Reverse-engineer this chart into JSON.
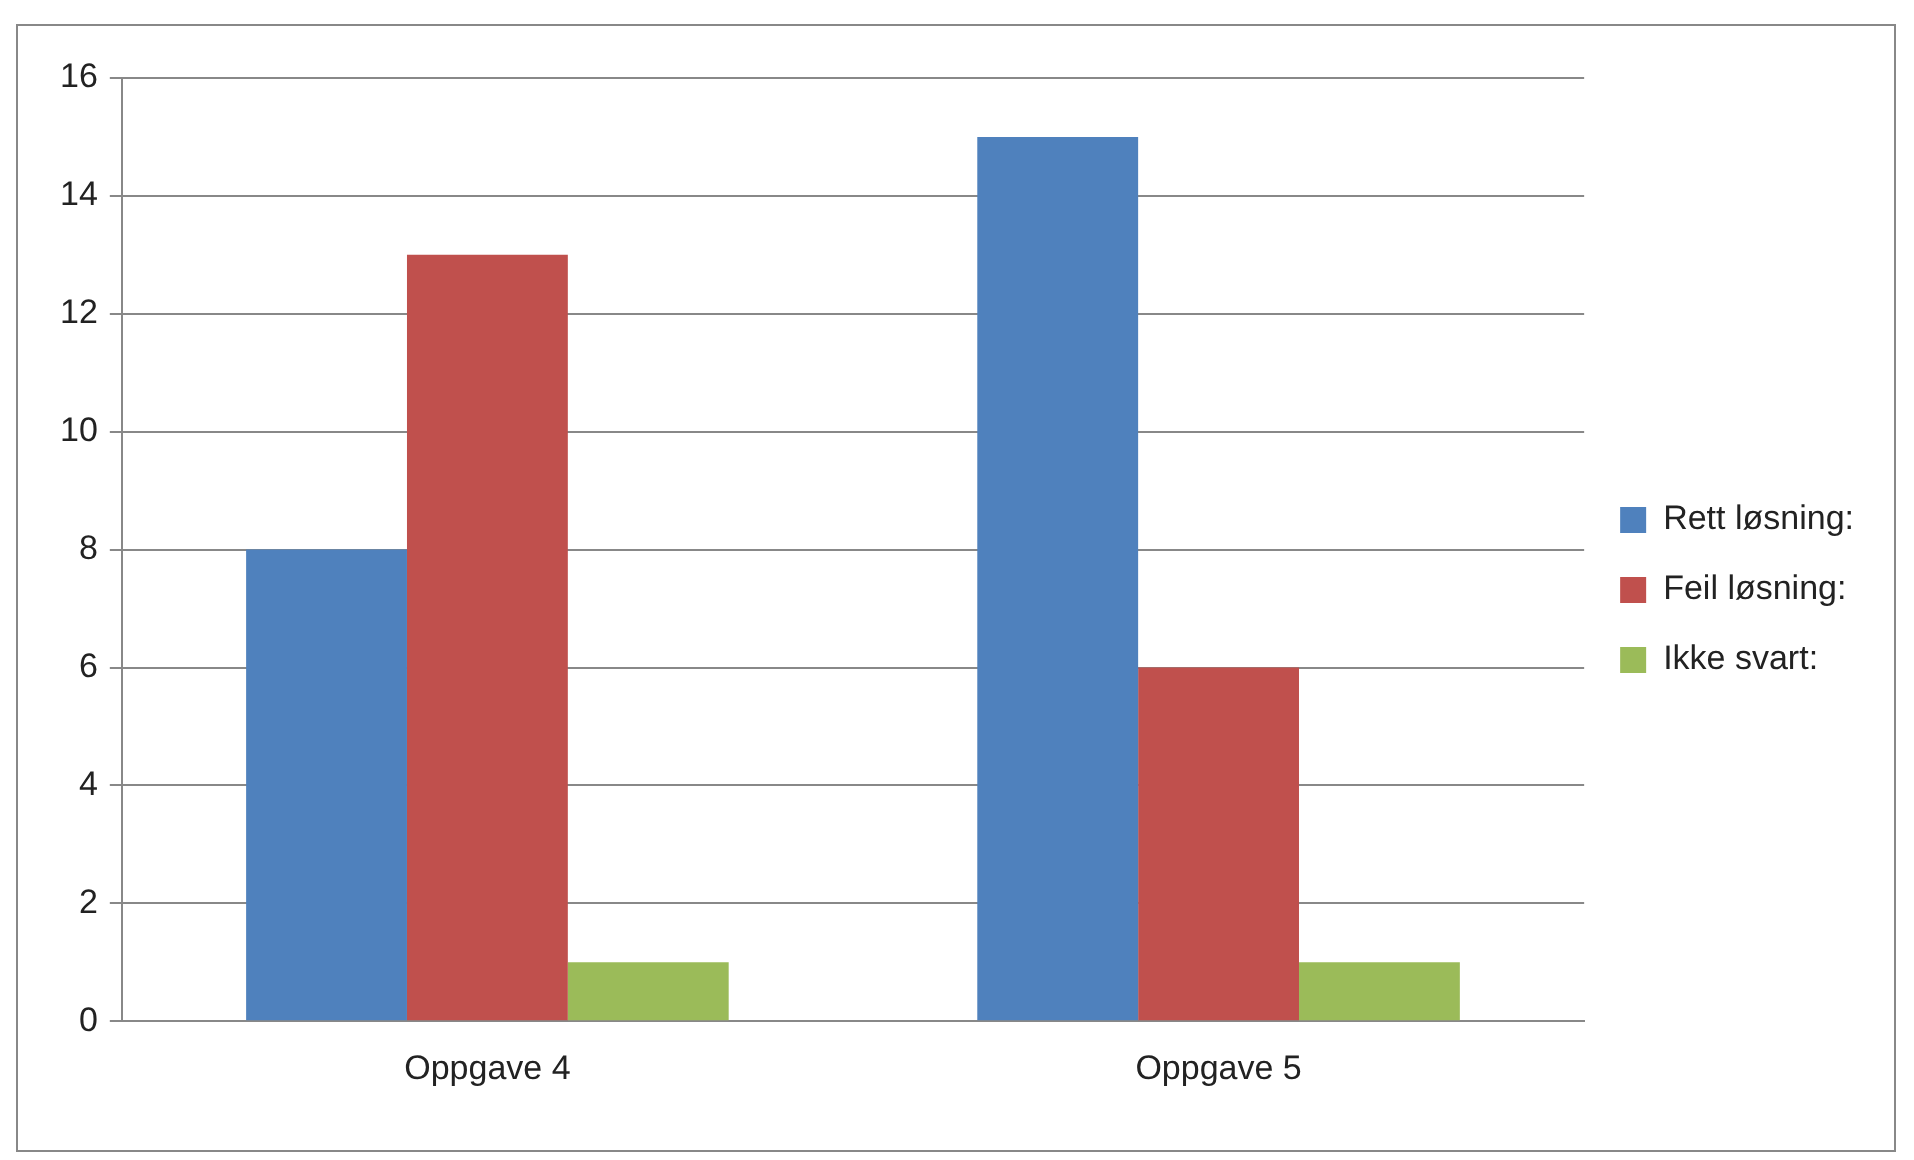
{
  "chart_data": {
    "type": "bar",
    "categories": [
      "Oppgave 4",
      "Oppgave 5"
    ],
    "series": [
      {
        "name": "Rett løsning:",
        "color": "#4f81bd",
        "values": [
          8,
          15
        ]
      },
      {
        "name": "Feil løsning:",
        "color": "#c0504d",
        "values": [
          13,
          6
        ]
      },
      {
        "name": "Ikke svart:",
        "color": "#9bbb59",
        "values": [
          1,
          1
        ]
      }
    ],
    "ylim": [
      0,
      16
    ],
    "yticks": [
      0,
      2,
      4,
      6,
      8,
      10,
      12,
      14,
      16
    ],
    "grid": "y",
    "legend": "right"
  }
}
